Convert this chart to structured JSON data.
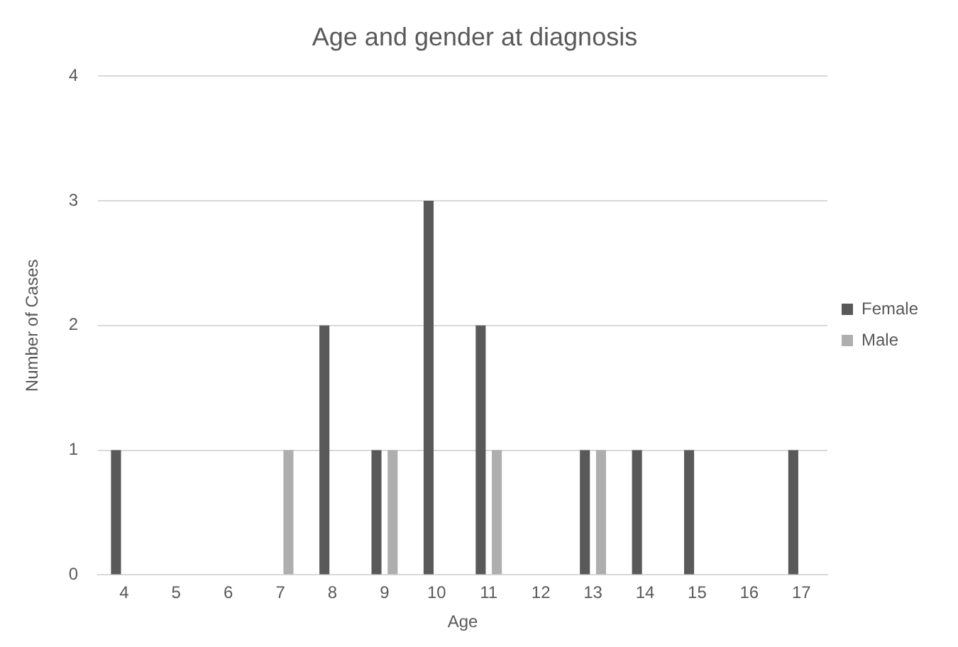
{
  "chart_data": {
    "type": "bar",
    "title": "Age and gender at diagnosis",
    "xlabel": "Age",
    "ylabel": "Number of Cases",
    "categories": [
      "4",
      "5",
      "6",
      "7",
      "8",
      "9",
      "10",
      "11",
      "12",
      "13",
      "14",
      "15",
      "16",
      "17"
    ],
    "series": [
      {
        "name": "Female",
        "color": "#595959",
        "values": [
          1,
          0,
          0,
          0,
          2,
          1,
          3,
          2,
          0,
          1,
          1,
          1,
          0,
          1
        ]
      },
      {
        "name": "Male",
        "color": "#aeaeae",
        "values": [
          0,
          0,
          0,
          1,
          0,
          1,
          0,
          1,
          0,
          1,
          0,
          0,
          0,
          0
        ]
      }
    ],
    "ylim": [
      0,
      4
    ],
    "yticks": [
      0,
      1,
      2,
      3,
      4
    ],
    "grid": "y",
    "legend": "right"
  }
}
